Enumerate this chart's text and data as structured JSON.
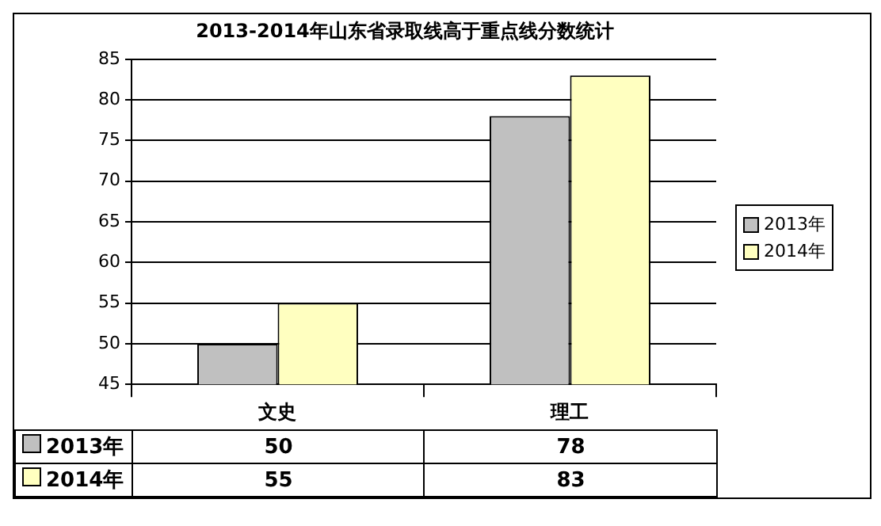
{
  "chart_data": {
    "type": "bar",
    "title": "2013-2014年山东省录取线高于重点线分数统计",
    "categories": [
      "文史",
      "理工"
    ],
    "series": [
      {
        "name": "2013年",
        "color": "#c0c0c0",
        "values": [
          50,
          78
        ]
      },
      {
        "name": "2014年",
        "color": "#ffffc0",
        "values": [
          55,
          83
        ]
      }
    ],
    "ylim": [
      45,
      85
    ],
    "yticks": [
      45,
      50,
      55,
      60,
      65,
      70,
      75,
      80,
      85
    ],
    "grid": "y",
    "legend": "right",
    "data_labels": true
  }
}
